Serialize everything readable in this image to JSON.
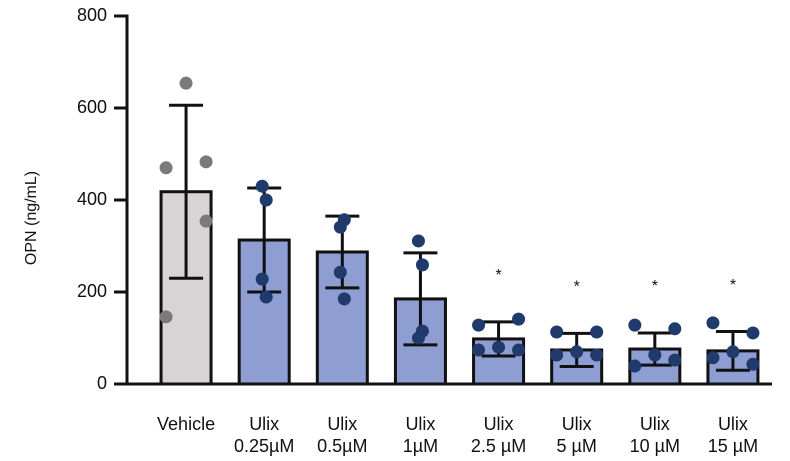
{
  "chart_data": {
    "type": "bar",
    "ylabel": "OPN (ng/mL)",
    "categories": [
      [
        "Vehicle"
      ],
      [
        "Ulix",
        "0.25µM"
      ],
      [
        "Ulix",
        "0.5µM"
      ],
      [
        "Ulix",
        "1µM"
      ],
      [
        "Ulix",
        "2.5 µM"
      ],
      [
        "Ulix",
        "5 µM"
      ],
      [
        "Ulix",
        "10 µM"
      ],
      [
        "Ulix",
        "15 µM"
      ]
    ],
    "values": [
      418,
      313,
      287,
      185,
      98,
      74,
      76,
      72
    ],
    "errors": [
      188,
      113,
      78,
      100,
      37,
      36,
      35,
      42
    ],
    "points": [
      [
        470,
        483,
        146,
        654,
        354
      ],
      [
        430,
        400,
        228,
        189
      ],
      [
        341,
        357,
        243,
        185
      ],
      [
        311,
        259,
        100,
        115
      ],
      [
        128,
        141,
        74,
        80,
        74
      ],
      [
        113,
        113,
        63,
        70,
        63
      ],
      [
        128,
        120,
        39,
        63,
        52
      ],
      [
        133,
        111,
        57,
        70,
        43
      ]
    ],
    "significance": [
      null,
      null,
      null,
      null,
      "*",
      "*",
      "*",
      "*"
    ],
    "colors": [
      "#d8d3d5",
      "#8e9dd2",
      "#8e9dd2",
      "#8e9dd2",
      "#8e9dd2",
      "#8e9dd2",
      "#8e9dd2",
      "#8e9dd2"
    ],
    "point_colors": [
      "#7a7a7a",
      "#1f3a6b",
      "#1f3a6b",
      "#1f3a6b",
      "#1f3a6b",
      "#1f3a6b",
      "#1f3a6b",
      "#1f3a6b"
    ],
    "ylim": [
      0,
      800
    ],
    "yticks": [
      0,
      200,
      400,
      600,
      800
    ]
  }
}
